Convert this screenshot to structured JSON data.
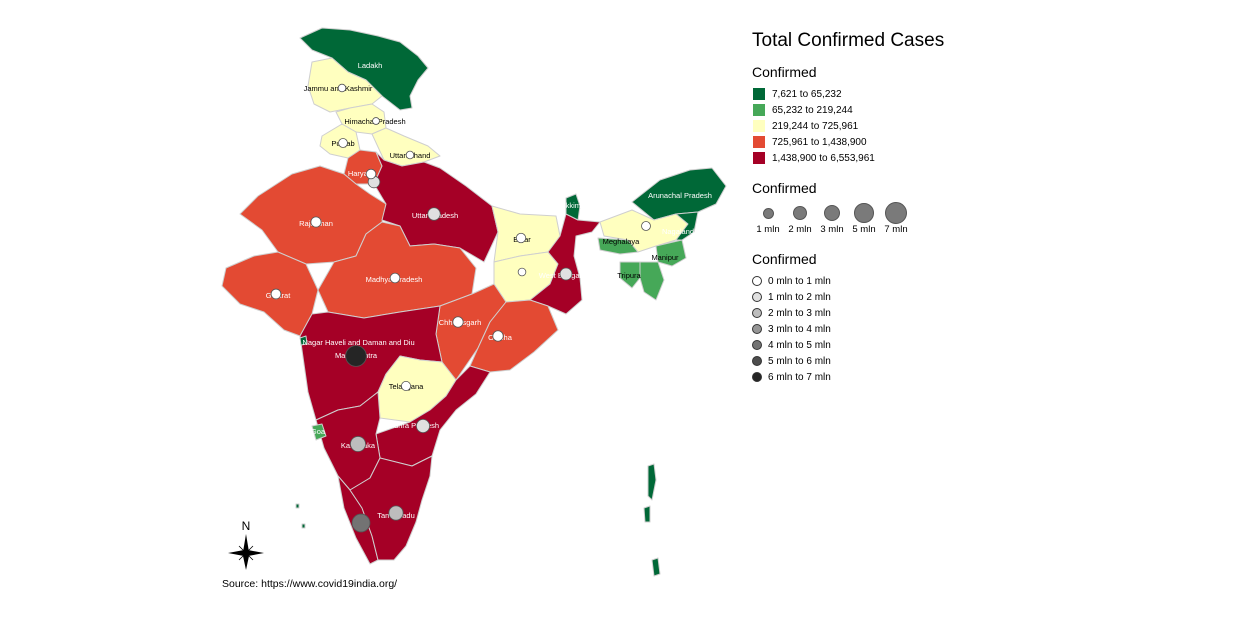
{
  "title": "Total Confirmed Cases",
  "legend_fill": {
    "title": "Confirmed",
    "items": [
      {
        "label": "7,621 to 65,232",
        "color": "#006837"
      },
      {
        "label": "65,232 to 219,244",
        "color": "#46a858"
      },
      {
        "label": "219,244 to 725,961",
        "color": "#ffffbf"
      },
      {
        "label": "725,961 to 1,438,900",
        "color": "#e34a33"
      },
      {
        "label": "1,438,900 to 6,553,961",
        "color": "#a50026"
      }
    ]
  },
  "legend_size": {
    "title": "Confirmed",
    "items": [
      {
        "label": "1 mln",
        "value": 1
      },
      {
        "label": "2 mln",
        "value": 2
      },
      {
        "label": "3 mln",
        "value": 3
      },
      {
        "label": "5 mln",
        "value": 5
      },
      {
        "label": "7 mln",
        "value": 7
      }
    ]
  },
  "legend_shade": {
    "title": "Confirmed",
    "items": [
      {
        "label": "0 mln to 1 mln",
        "color": "#ffffff"
      },
      {
        "label": "1 mln to 2 mln",
        "color": "#e0e0e0"
      },
      {
        "label": "2 mln to 3 mln",
        "color": "#bdbdbd"
      },
      {
        "label": "3 mln to 4 mln",
        "color": "#969696"
      },
      {
        "label": "4 mln to 5 mln",
        "color": "#737373"
      },
      {
        "label": "5 mln to 6 mln",
        "color": "#4d4d4d"
      },
      {
        "label": "6 mln to 7 mln",
        "color": "#252525"
      }
    ]
  },
  "regions": [
    {
      "name": "Ladakh",
      "class": 0
    },
    {
      "name": "Jammu and Kashmir",
      "class": 2
    },
    {
      "name": "Himachal Pradesh",
      "class": 2
    },
    {
      "name": "Punjab",
      "class": 2
    },
    {
      "name": "Uttarakhand",
      "class": 2
    },
    {
      "name": "Haryana",
      "class": 3
    },
    {
      "name": "Rajasthan",
      "class": 3
    },
    {
      "name": "Uttar Pradesh",
      "class": 4
    },
    {
      "name": "Bihar",
      "class": 2
    },
    {
      "name": "West Bengal",
      "class": 4
    },
    {
      "name": "Sikkim",
      "class": 0
    },
    {
      "name": "Arunachal Pradesh",
      "class": 0
    },
    {
      "name": "Assam",
      "class": 2
    },
    {
      "name": "Nagaland",
      "class": 0
    },
    {
      "name": "Meghalaya",
      "class": 1
    },
    {
      "name": "Manipur",
      "class": 1
    },
    {
      "name": "Mizoram",
      "class": 1
    },
    {
      "name": "Tripura",
      "class": 1
    },
    {
      "name": "Jharkhand",
      "class": 2
    },
    {
      "name": "Odisha",
      "class": 3
    },
    {
      "name": "Chhattisgarh",
      "class": 3
    },
    {
      "name": "Madhya Pradesh",
      "class": 3
    },
    {
      "name": "Gujarat",
      "class": 3
    },
    {
      "name": "Maharashtra",
      "class": 4
    },
    {
      "name": "Telangana",
      "class": 2
    },
    {
      "name": "Andhra Pradesh",
      "class": 4
    },
    {
      "name": "Karnataka",
      "class": 4
    },
    {
      "name": "Goa",
      "class": 1
    },
    {
      "name": "Kerala",
      "class": 4
    },
    {
      "name": "Tamil Nadu",
      "class": 4
    },
    {
      "name": "Dadra and Nagar Haveli and Daman and Diu",
      "class": 0
    },
    {
      "name": "Andaman and Nicobar Islands",
      "class": 0
    },
    {
      "name": "Lakshadweep",
      "class": 0
    }
  ],
  "labels": {
    "ladakh": "Ladakh",
    "jk": "Jammu and Kashmir",
    "hp": "Himachal Pradesh",
    "punjab": "Punjab",
    "uk": "Uttarakhand",
    "haryana": "Haryana",
    "rajasthan": "Rajasthan",
    "up": "Uttar Pradesh",
    "bihar": "Bihar",
    "wb": "West Bengal",
    "sikkim": "Sikkim",
    "arunachal": "Arunachal Pradesh",
    "nagaland": "Nagaland",
    "meghalaya": "Meghalaya",
    "manipur": "Manipur",
    "tripura": "Tripura",
    "odisha": "Odisha",
    "chhattisgarh": "Chhattisgarh",
    "mp": "Madhya Pradesh",
    "gujarat": "Gujarat",
    "dnh": "Dadra and Nagar Haveli and Daman and Diu",
    "maharashtra": "Maharashtra",
    "telangana": "Telangana",
    "ap": "Andhra Pradesh",
    "karnataka": "Karnataka",
    "goa": "Goa",
    "tn": "Tamil Nadu"
  },
  "bubbles": [
    {
      "name": "Maharashtra",
      "cases_mln": 6.5,
      "shade": 6
    },
    {
      "name": "Kerala",
      "cases_mln": 4.5,
      "shade": 4
    },
    {
      "name": "Karnataka",
      "cases_mln": 2.9,
      "shade": 2
    },
    {
      "name": "Tamil Nadu",
      "cases_mln": 2.5,
      "shade": 2
    },
    {
      "name": "Andhra Pradesh",
      "cases_mln": 2.0,
      "shade": 1
    },
    {
      "name": "Uttar Pradesh",
      "cases_mln": 1.7,
      "shade": 1
    },
    {
      "name": "West Bengal",
      "cases_mln": 1.5,
      "shade": 1
    },
    {
      "name": "Delhi",
      "cases_mln": 1.4,
      "shade": 1
    },
    {
      "name": "Odisha",
      "cases_mln": 1.0,
      "shade": 0
    },
    {
      "name": "Chhattisgarh",
      "cases_mln": 1.0,
      "shade": 0
    },
    {
      "name": "Rajasthan",
      "cases_mln": 0.95,
      "shade": 0
    },
    {
      "name": "Gujarat",
      "cases_mln": 0.83,
      "shade": 0
    },
    {
      "name": "Madhya Pradesh",
      "cases_mln": 0.79,
      "shade": 0
    },
    {
      "name": "Haryana",
      "cases_mln": 0.77,
      "shade": 0
    },
    {
      "name": "Bihar",
      "cases_mln": 0.72,
      "shade": 0
    },
    {
      "name": "Telangana",
      "cases_mln": 0.66,
      "shade": 0
    },
    {
      "name": "Punjab",
      "cases_mln": 0.6,
      "shade": 0
    },
    {
      "name": "Assam",
      "cases_mln": 0.6,
      "shade": 0
    },
    {
      "name": "Jharkhand",
      "cases_mln": 0.35,
      "shade": 0
    },
    {
      "name": "Uttarakhand",
      "cases_mln": 0.34,
      "shade": 0
    },
    {
      "name": "Jammu and Kashmir",
      "cases_mln": 0.33,
      "shade": 0
    },
    {
      "name": "Himachal Pradesh",
      "cases_mln": 0.22,
      "shade": 0
    }
  ],
  "compass": {
    "label": "N"
  },
  "source": "Source: https://www.covid19india.org/"
}
